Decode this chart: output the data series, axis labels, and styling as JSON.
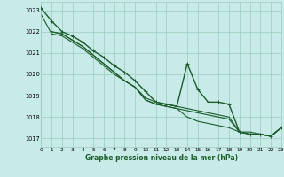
{
  "title": "Graphe pression niveau de la mer (hPa)",
  "bg_color": "#c8eae8",
  "grid_color_major": "#99ccbb",
  "grid_color_minor": "#bbddcc",
  "line_color": "#1a5c2a",
  "xlim": [
    0,
    23
  ],
  "ylim": [
    1016.6,
    1023.4
  ],
  "yticks": [
    1017,
    1018,
    1019,
    1020,
    1021,
    1022,
    1023
  ],
  "xticks": [
    0,
    1,
    2,
    3,
    4,
    5,
    6,
    7,
    8,
    9,
    10,
    11,
    12,
    13,
    14,
    15,
    16,
    17,
    18,
    19,
    20,
    21,
    22,
    23
  ],
  "series": [
    {
      "x": [
        0,
        1,
        2,
        3,
        4,
        5,
        6,
        7,
        8,
        9,
        10,
        11,
        12,
        13,
        14,
        15,
        16,
        17,
        18,
        19,
        20,
        21,
        22,
        23
      ],
      "y": [
        1023.1,
        1022.5,
        1022.0,
        1021.8,
        1021.5,
        1021.1,
        1020.8,
        1020.4,
        1020.1,
        1019.7,
        1019.2,
        1018.7,
        1018.6,
        1018.5,
        1020.5,
        1019.3,
        1018.7,
        1018.7,
        1018.6,
        1017.3,
        1017.2,
        1017.2,
        1017.1,
        1017.5
      ],
      "marker": true,
      "lw": 1.0
    },
    {
      "x": [
        1,
        2,
        3,
        4,
        5,
        6,
        7,
        8,
        9,
        10,
        11,
        12,
        13,
        14,
        15,
        16,
        17,
        18,
        19,
        20,
        21,
        22,
        23
      ],
      "y": [
        1022.0,
        1021.9,
        1021.6,
        1021.3,
        1020.9,
        1020.5,
        1020.1,
        1019.7,
        1019.4,
        1018.8,
        1018.6,
        1018.5,
        1018.4,
        1018.0,
        1017.8,
        1017.7,
        1017.6,
        1017.5,
        1017.3,
        1017.2,
        1017.2,
        1017.1,
        1017.5
      ],
      "marker": false,
      "lw": 0.8
    },
    {
      "x": [
        1,
        2,
        3,
        4,
        5,
        6,
        7,
        8,
        9,
        10,
        11,
        12,
        13,
        14,
        15,
        16,
        17,
        18,
        19,
        20,
        21,
        22,
        23
      ],
      "y": [
        1022.0,
        1021.9,
        1021.6,
        1021.3,
        1020.9,
        1020.5,
        1020.1,
        1019.7,
        1019.4,
        1018.9,
        1018.7,
        1018.6,
        1018.5,
        1018.4,
        1018.3,
        1018.2,
        1018.1,
        1018.0,
        1017.3,
        1017.3,
        1017.2,
        1017.1,
        1017.5
      ],
      "marker": false,
      "lw": 0.8
    },
    {
      "x": [
        0,
        1,
        2,
        3,
        4,
        5,
        6,
        7,
        8,
        9,
        10,
        11,
        12,
        13,
        14,
        15,
        16,
        17,
        18,
        19,
        20,
        21,
        22,
        23
      ],
      "y": [
        1022.8,
        1021.9,
        1021.8,
        1021.5,
        1021.2,
        1020.8,
        1020.4,
        1020.0,
        1019.7,
        1019.4,
        1018.8,
        1018.6,
        1018.5,
        1018.4,
        1018.3,
        1018.2,
        1018.1,
        1018.0,
        1017.9,
        1017.3,
        1017.2,
        1017.2,
        1017.1,
        1017.5
      ],
      "marker": false,
      "lw": 0.8
    }
  ]
}
